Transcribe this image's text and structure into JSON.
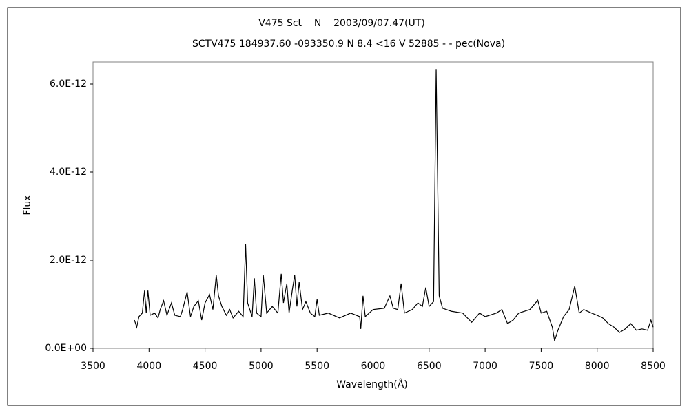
{
  "chart_data": {
    "type": "line",
    "title": "V475 Sct    N    2003/09/07.47(UT)",
    "subtitle": "SCTV475 184937.60 -093350.9 N 8.4 <16 V 52885 - - pec(Nova)",
    "x_label": "Wavelength(Å)",
    "y_label": "Flux",
    "x": [
      3870,
      3890,
      3910,
      3940,
      3960,
      3975,
      3990,
      4010,
      4050,
      4080,
      4100,
      4130,
      4160,
      4200,
      4230,
      4280,
      4300,
      4340,
      4370,
      4400,
      4440,
      4470,
      4500,
      4540,
      4570,
      4600,
      4620,
      4650,
      4690,
      4720,
      4750,
      4800,
      4840,
      4862,
      4880,
      4920,
      4940,
      4960,
      5000,
      5020,
      5050,
      5100,
      5150,
      5180,
      5200,
      5230,
      5250,
      5280,
      5300,
      5320,
      5340,
      5370,
      5400,
      5440,
      5480,
      5500,
      5520,
      5600,
      5700,
      5800,
      5880,
      5890,
      5910,
      5930,
      6000,
      6100,
      6150,
      6180,
      6220,
      6250,
      6280,
      6350,
      6400,
      6440,
      6470,
      6500,
      6540,
      6563,
      6590,
      6620,
      6700,
      6800,
      6880,
      6950,
      7000,
      7100,
      7150,
      7200,
      7250,
      7300,
      7400,
      7470,
      7500,
      7550,
      7600,
      7620,
      7650,
      7700,
      7750,
      7800,
      7840,
      7880,
      7950,
      8000,
      8050,
      8100,
      8150,
      8200,
      8250,
      8300,
      8350,
      8400,
      8450,
      8480,
      8500
    ],
    "series": [
      {
        "color": "#000000",
        "values": [
          6.4e-13,
          4.8e-13,
          7.2e-13,
          8e-13,
          1.31e-12,
          8e-13,
          1.31e-12,
          7.5e-13,
          8e-13,
          6.9e-13,
          8.8e-13,
          1.08e-12,
          7.5e-13,
          1.03e-12,
          7.5e-13,
          7.2e-13,
          8.8e-13,
          1.28e-12,
          7.2e-13,
          9.5e-13,
          1.08e-12,
          6.4e-13,
          1.03e-12,
          1.22e-12,
          8.8e-13,
          1.66e-12,
          1.19e-12,
          9.5e-13,
          7.5e-13,
          8.8e-13,
          6.9e-13,
          8.4e-13,
          7.2e-13,
          2.36e-12,
          1.03e-12,
          7.2e-13,
          1.59e-12,
          8e-13,
          7.2e-13,
          1.66e-12,
          8e-13,
          9.5e-13,
          8e-13,
          1.69e-12,
          1.03e-12,
          1.47e-12,
          8e-13,
          1.34e-12,
          1.66e-12,
          9.5e-13,
          1.5e-12,
          8.8e-13,
          1.06e-12,
          8e-13,
          7.2e-13,
          1.11e-12,
          7.5e-13,
          8e-13,
          6.9e-13,
          8e-13,
          7.2e-13,
          4.4e-13,
          1.19e-12,
          7.2e-13,
          8.8e-13,
          9.1e-13,
          1.19e-12,
          9.1e-13,
          8.8e-13,
          1.47e-12,
          8e-13,
          8.8e-13,
          1.03e-12,
          9.5e-13,
          1.38e-12,
          9.5e-13,
          1.06e-12,
          6.34e-12,
          1.19e-12,
          9.1e-13,
          8.4e-13,
          8e-13,
          5.9e-13,
          8e-13,
          7.2e-13,
          8e-13,
          8.8e-13,
          5.6e-13,
          6.4e-13,
          8e-13,
          8.8e-13,
          1.09e-12,
          8e-13,
          8.4e-13,
          4.8e-13,
          1.7e-13,
          4.1e-13,
          7.2e-13,
          8.8e-13,
          1.41e-12,
          8e-13,
          8.8e-13,
          8e-13,
          7.5e-13,
          6.9e-13,
          5.6e-13,
          4.8e-13,
          3.6e-13,
          4.4e-13,
          5.6e-13,
          4.1e-13,
          4.4e-13,
          4.1e-13,
          6.4e-13,
          4.8e-13
        ]
      }
    ],
    "xlim": [
      3500,
      8500
    ],
    "xticks": [
      3500,
      4000,
      4500,
      5000,
      5500,
      6000,
      6500,
      7000,
      7500,
      8000,
      8500
    ],
    "ylim": [
      0,
      6.5e-12
    ],
    "yticks": [
      {
        "value": 0,
        "label": "0.0E+00"
      },
      {
        "value": 2e-12,
        "label": "2.0E-12"
      },
      {
        "value": 4e-12,
        "label": "4.0E-12"
      },
      {
        "value": 6e-12,
        "label": "6.0E-12"
      }
    ]
  }
}
